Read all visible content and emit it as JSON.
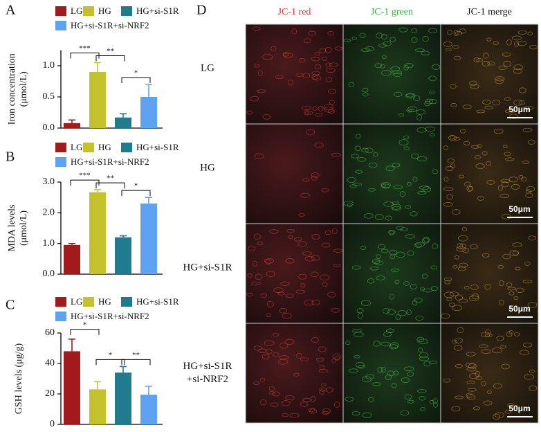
{
  "chart_data": [
    {
      "type": "bar",
      "panel": "A",
      "ylabel": [
        "Iron concentration",
        "(μmol/L)"
      ],
      "categories": [
        "LG",
        "HG",
        "HG+si-S1R",
        "HG+si-S1R+si-NRF2"
      ],
      "colors": [
        "#a31a1c",
        "#c4c22c",
        "#1f7b8d",
        "#5ea3f2"
      ],
      "values": [
        0.08,
        0.9,
        0.17,
        0.5
      ],
      "errors": [
        0.05,
        0.15,
        0.06,
        0.2
      ],
      "significance": [
        "***",
        "**",
        "*"
      ],
      "ylim": [
        0,
        1.25
      ],
      "yticks": [
        {
          "value": 0,
          "label": "0.0"
        },
        {
          "value": 0.5,
          "label": "0.5"
        },
        {
          "value": 1,
          "label": "1.0"
        }
      ]
    },
    {
      "type": "bar",
      "panel": "B",
      "ylabel": [
        "MDA levels",
        "(μmol/L)"
      ],
      "categories": [
        "LG",
        "HG",
        "HG+si-S1R",
        "HG+si-S1R+si-NRF2"
      ],
      "colors": [
        "#a31a1c",
        "#c4c22c",
        "#1f7b8d",
        "#5ea3f2"
      ],
      "values": [
        0.95,
        2.67,
        1.2,
        2.3
      ],
      "errors": [
        0.05,
        0.08,
        0.05,
        0.2
      ],
      "significance": [
        "***",
        "**",
        "*"
      ],
      "ylim": [
        0,
        3
      ],
      "yticks": [
        {
          "value": 0,
          "label": "0.0"
        },
        {
          "value": 1,
          "label": "1.0"
        },
        {
          "value": 2,
          "label": "2.0"
        },
        {
          "value": 3,
          "label": "3.0"
        }
      ]
    },
    {
      "type": "bar",
      "panel": "C",
      "ylabel": [
        "GSH levels (μg/g)"
      ],
      "categories": [
        "LG",
        "HG",
        "HG+si-S1R",
        "HG+si-S1R+si-NRF2"
      ],
      "colors": [
        "#a31a1c",
        "#c4c22c",
        "#1f7b8d",
        "#5ea3f2"
      ],
      "values": [
        48,
        23,
        34,
        19.5
      ],
      "errors": [
        8,
        5,
        4,
        5.5
      ],
      "significance": [
        "*",
        "*",
        "**"
      ],
      "ylim": [
        0,
        60
      ],
      "yticks": [
        0,
        20,
        40,
        60
      ]
    }
  ],
  "panel_d": {
    "panel": "D",
    "columns": [
      "JC-1 red",
      "JC-1 green",
      "JC-1 merge"
    ],
    "rows": [
      [
        "LG"
      ],
      [
        "HG"
      ],
      [
        "HG+si-S1R"
      ],
      [
        "HG+si-S1R",
        "+si-NRF2"
      ]
    ],
    "scale_bars": [
      "50μm",
      "50μm",
      "50μm",
      "50μm"
    ]
  }
}
